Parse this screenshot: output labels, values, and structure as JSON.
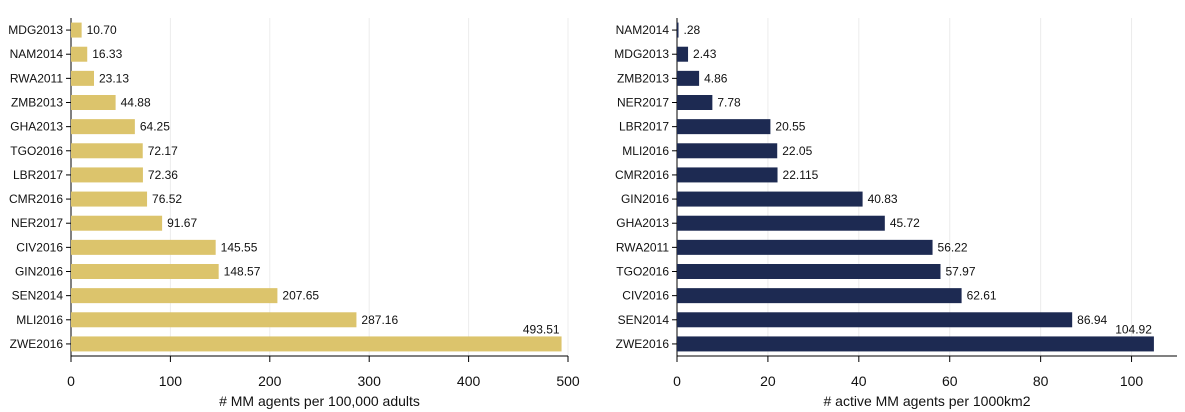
{
  "chart_data": [
    {
      "type": "bar",
      "orientation": "horizontal",
      "categories": [
        "MDG2013",
        "NAM2014",
        "RWA2011",
        "ZMB2013",
        "GHA2013",
        "TGO2016",
        "LBR2017",
        "CMR2016",
        "NER2017",
        "CIV2016",
        "GIN2016",
        "SEN2014",
        "MLI2016",
        "ZWE2016"
      ],
      "values": [
        10.7,
        16.33,
        23.13,
        44.88,
        64.25,
        72.17,
        72.36,
        76.52,
        91.67,
        145.55,
        148.57,
        207.65,
        287.16,
        493.51
      ],
      "value_labels": [
        "10.70",
        "16.33",
        "23.13",
        "44.88",
        "64.25",
        "72.17",
        "72.36",
        "76.52",
        "91.67",
        "145.55",
        "148.57",
        "207.65",
        "287.16",
        "493.51"
      ],
      "xlabel": "# MM agents per 100,000 adults",
      "ylabel": "",
      "title": "",
      "xlim": [
        0,
        500
      ],
      "xticks": [
        0,
        100,
        200,
        300,
        400,
        500
      ],
      "bar_color": "#dcc46c",
      "grid": true
    },
    {
      "type": "bar",
      "orientation": "horizontal",
      "categories": [
        "NAM2014",
        "MDG2013",
        "ZMB2013",
        "NER2017",
        "LBR2017",
        "MLI2016",
        "CMR2016",
        "GIN2016",
        "GHA2013",
        "RWA2011",
        "TGO2016",
        "CIV2016",
        "SEN2014",
        "ZWE2016"
      ],
      "values": [
        0.28,
        2.43,
        4.86,
        7.78,
        20.55,
        22.05,
        22.115,
        40.83,
        45.72,
        56.22,
        57.97,
        62.61,
        86.94,
        104.92
      ],
      "value_labels": [
        ".28",
        "2.43",
        "4.86",
        "7.78",
        "20.55",
        "22.05",
        "22.115",
        "40.83",
        "45.72",
        "56.22",
        "57.97",
        "62.61",
        "86.94",
        "104.92"
      ],
      "xlabel": "# active MM agents per 1000km2",
      "ylabel": "",
      "title": "",
      "xlim": [
        0,
        110
      ],
      "xticks": [
        0,
        20,
        40,
        60,
        80,
        100
      ],
      "bar_color": "#1d2a52",
      "grid": true
    }
  ]
}
